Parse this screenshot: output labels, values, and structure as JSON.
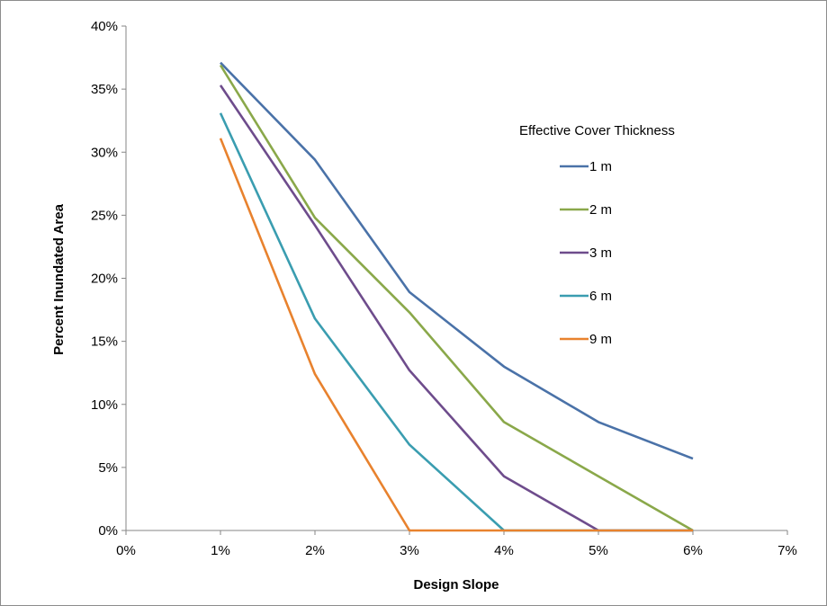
{
  "chart_data": {
    "type": "line",
    "xlabel": "Design Slope",
    "ylabel": "Percent Inundated  Area",
    "x": [
      1,
      2,
      3,
      4,
      5,
      6
    ],
    "xlim": [
      0,
      7
    ],
    "ylim": [
      0,
      40
    ],
    "x_ticks": [
      "0%",
      "1%",
      "2%",
      "3%",
      "4%",
      "5%",
      "6%",
      "7%"
    ],
    "y_ticks": [
      "0%",
      "5%",
      "10%",
      "15%",
      "20%",
      "25%",
      "30%",
      "35%",
      "40%"
    ],
    "grid": false,
    "legend": {
      "title": "Effective Cover Thickness",
      "placement": "right"
    },
    "series": [
      {
        "name": "1 m",
        "color": "#4a72a8",
        "values": [
          37.1,
          29.4,
          18.9,
          13.0,
          8.6,
          5.7
        ]
      },
      {
        "name": "2 m",
        "color": "#8aa84a",
        "values": [
          36.9,
          24.8,
          17.3,
          8.6,
          4.3,
          0
        ]
      },
      {
        "name": "3 m",
        "color": "#6e4c8c",
        "values": [
          35.3,
          24.2,
          12.7,
          4.3,
          0,
          0
        ]
      },
      {
        "name": "6 m",
        "color": "#3a9db0",
        "values": [
          33.1,
          16.8,
          6.8,
          0,
          0,
          0
        ]
      },
      {
        "name": "9 m",
        "color": "#e8822e",
        "values": [
          31.1,
          12.4,
          0,
          0,
          0,
          0
        ]
      }
    ]
  }
}
